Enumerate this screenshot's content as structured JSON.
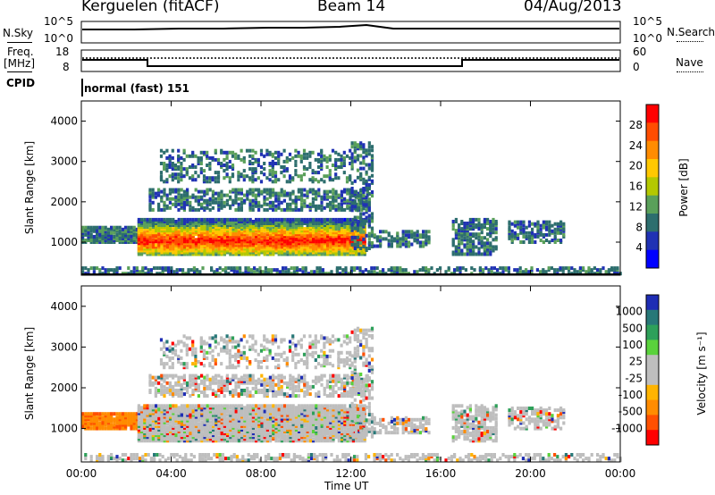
{
  "header": {
    "station": "Kerguelen (fitACF)",
    "beam": "Beam 14",
    "date": "04/Aug/2013"
  },
  "strips": {
    "nsky_label": "N.Sky",
    "nsky_ticks": [
      "10^5",
      "10^0"
    ],
    "nsearch_label": "N.Search",
    "nsearch_ticks": [
      "10^5",
      "10^0"
    ],
    "freq_label_1": "Freq.",
    "freq_label_2": "[MHz]",
    "freq_ticks": [
      "18",
      "8"
    ],
    "nave_label": "Nave",
    "nave_ticks": [
      "60",
      "0"
    ],
    "cpid_label": "CPID",
    "cpid_value": "normal (fast) 151"
  },
  "chart_data": [
    {
      "type": "heatmap",
      "panel": "power",
      "ylabel": "Slant Range [km]",
      "yticks": [
        "4000",
        "3000",
        "2000",
        "1000"
      ],
      "ylim": [
        180,
        4500
      ],
      "colorbar": {
        "label": "Power [dB]",
        "ticks": [
          "28",
          "24",
          "20",
          "16",
          "12",
          "8",
          "4"
        ],
        "colors": [
          "#ff0000",
          "#ff4d00",
          "#ff8c00",
          "#ffc800",
          "#b4c800",
          "#5aa05a",
          "#2d6e6e",
          "#2032b4",
          "#0000ff"
        ]
      }
    },
    {
      "type": "heatmap",
      "panel": "velocity",
      "ylabel": "Slant Range [km]",
      "yticks": [
        "4000",
        "3000",
        "2000",
        "1000"
      ],
      "ylim": [
        180,
        4500
      ],
      "colorbar": {
        "label": "Velocity [m s⁻¹]",
        "ticks": [
          "1000",
          "500",
          "100",
          "25",
          "-25",
          "-100",
          "-500",
          "-1000"
        ],
        "colors": [
          "#1e2db4",
          "#287878",
          "#2ea05a",
          "#5ad23c",
          "#bebebe",
          "#bebebe",
          "#ffb400",
          "#ff8c00",
          "#ff5000",
          "#ff0000"
        ]
      }
    }
  ],
  "xaxis": {
    "label": "Time UT",
    "ticks": [
      "00:00",
      "04:00",
      "08:00",
      "12:00",
      "16:00",
      "20:00",
      "00:00"
    ]
  }
}
